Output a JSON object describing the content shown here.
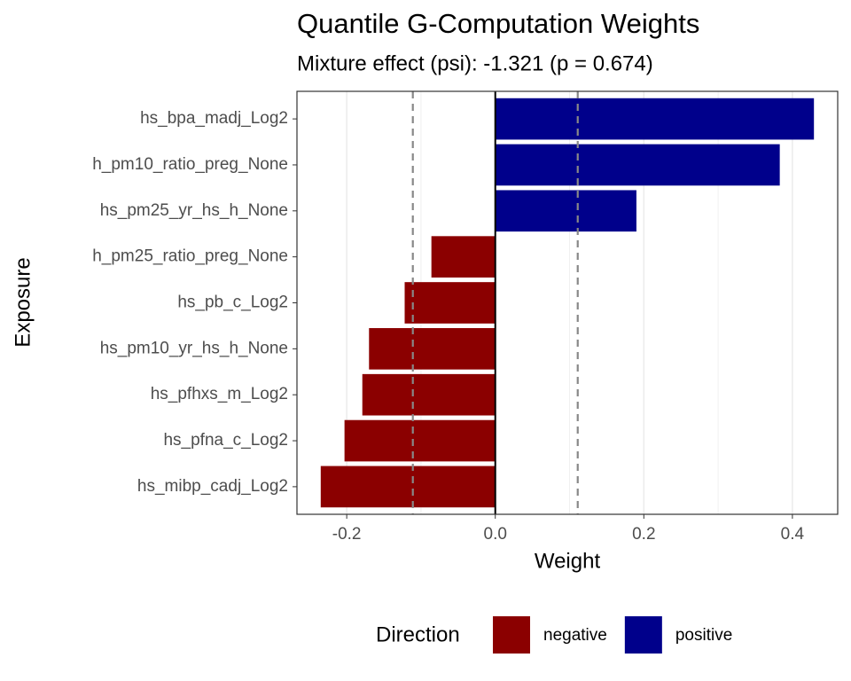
{
  "chart_data": {
    "type": "bar",
    "orientation": "horizontal",
    "title": "Quantile G-Computation Weights",
    "subtitle": "Mixture effect (psi): -1.321 (p = 0.674)",
    "x_label": "Weight",
    "y_label": "Exposure",
    "categories": [
      "hs_bpa_madj_Log2",
      "h_pm10_ratio_preg_None",
      "hs_pm25_yr_hs_h_None",
      "h_pm25_ratio_preg_None",
      "hs_pb_c_Log2",
      "hs_pm10_yr_hs_h_None",
      "hs_pfhxs_m_Log2",
      "hs_pfna_c_Log2",
      "hs_mibp_cadj_Log2"
    ],
    "series": [
      {
        "name": "negative",
        "color": "#8b0000",
        "values": [
          null,
          null,
          null,
          -0.086,
          -0.122,
          -0.17,
          -0.179,
          -0.203,
          -0.235
        ]
      },
      {
        "name": "positive",
        "color": "#00008b",
        "values": [
          0.429,
          0.383,
          0.19,
          null,
          null,
          null,
          null,
          null,
          null
        ]
      }
    ],
    "legend_title": "Direction",
    "legend_position": "bottom",
    "xlim": [
      -0.267,
      0.461
    ],
    "xticks": [
      {
        "value": -0.2,
        "label": "-0.2"
      },
      {
        "value": 0,
        "label": "0.0"
      },
      {
        "value": 0.2,
        "label": "0.2"
      },
      {
        "value": 0.4,
        "label": "0.4"
      }
    ],
    "reference_lines": [
      -0.111,
      0.111
    ],
    "grid": true
  }
}
